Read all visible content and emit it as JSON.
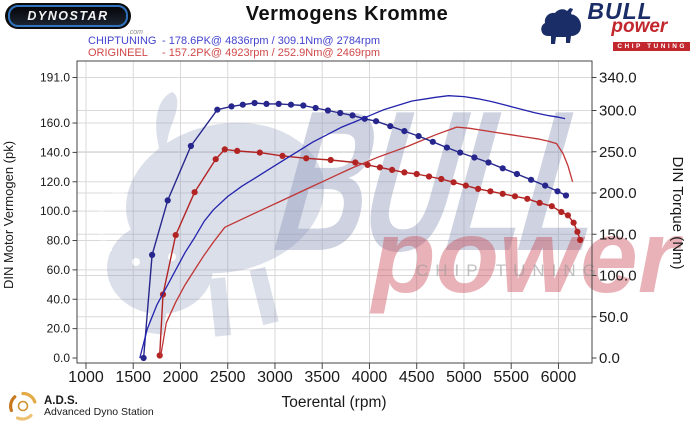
{
  "header": {
    "title": "Vermogens Kromme",
    "dynostar_text": "DYNOSTAR",
    "dynostar_suffix": ".com",
    "bullpower": {
      "line1": "BULL",
      "line2": "power",
      "line3": "CHIP TUNING"
    }
  },
  "legend": [
    {
      "label": "CHIPTUNING",
      "values": "- 178.6PK@ 4836rpm / 309.1Nm@ 2784rpm",
      "color": "#4343cf"
    },
    {
      "label": "ORIGINEEL",
      "values": "- 157.2PK@ 4923rpm / 252.9Nm@ 2469rpm",
      "color": "#d04848"
    }
  ],
  "watermark": {
    "bull_text": "BULL",
    "power_text": "power",
    "chip_text": "CHIP TUNING"
  },
  "footer": {
    "ads_abbr": "A.D.S.",
    "ads_name": "Advanced Dyno Station"
  },
  "colors": {
    "grid": "#d9d9d9",
    "frame": "#454545",
    "tick_text": "#1a1a1a",
    "watermark_blue": "#8b96ba",
    "watermark_red": "#c94a57",
    "watermark_gray": "#9a9a9a",
    "logo_navy": "#1b2d66",
    "logo_red": "#c1272d",
    "dynostar_blue": "#2f72bd",
    "ads_orange": "#cf9030"
  },
  "chart_data": {
    "type": "line",
    "title": "Vermogens Kromme",
    "xlabel": "Toerental (rpm)",
    "ylabel_left": "DIN Motor Vermogen (pk)",
    "ylabel_right": "DIN Torque (Nm)",
    "grid": true,
    "xlim": [
      905,
      6355
    ],
    "x_ticks": [
      1000,
      1500,
      2000,
      2500,
      3000,
      3500,
      4000,
      4500,
      5000,
      5500,
      6000
    ],
    "ylim_left": [
      0,
      191
    ],
    "y_ticks_left": [
      0,
      20,
      40,
      60,
      80,
      100,
      120,
      140,
      160,
      191
    ],
    "ylim_right": [
      0,
      340
    ],
    "y_ticks_right": [
      0,
      50,
      100,
      150,
      200,
      250,
      300,
      340
    ],
    "peaks": {
      "chiptuning": {
        "power_pk": 178.6,
        "power_rpm": 4836,
        "torque_nm": 309.1,
        "torque_rpm": 2784
      },
      "origineel": {
        "power_pk": 157.2,
        "power_rpm": 4923,
        "torque_nm": 252.9,
        "torque_rpm": 2469
      }
    },
    "series": [
      {
        "id": "origineel-torque",
        "name": "ORIGINEEL torque (Nm)",
        "axis": "right",
        "color": "#b22424",
        "markers": true,
        "points": [
          [
            1780,
            3
          ],
          [
            1815,
            77
          ],
          [
            1950,
            149
          ],
          [
            2150,
            201
          ],
          [
            2373,
            241
          ],
          [
            2469,
            252.9
          ],
          [
            2600,
            251
          ],
          [
            2840,
            249
          ],
          [
            3080,
            245
          ],
          [
            3330,
            242
          ],
          [
            3590,
            240
          ],
          [
            3850,
            237
          ],
          [
            3980,
            234
          ],
          [
            4110,
            231
          ],
          [
            4240,
            228
          ],
          [
            4370,
            225
          ],
          [
            4500,
            223
          ],
          [
            4630,
            220
          ],
          [
            4760,
            217
          ],
          [
            4890,
            213
          ],
          [
            5020,
            209
          ],
          [
            5150,
            205
          ],
          [
            5280,
            202
          ],
          [
            5410,
            199
          ],
          [
            5540,
            196
          ],
          [
            5670,
            193
          ],
          [
            5800,
            188
          ],
          [
            5930,
            184
          ],
          [
            6030,
            177
          ],
          [
            6100,
            173
          ],
          [
            6160,
            164
          ],
          [
            6200,
            153
          ],
          [
            6230,
            143
          ]
        ]
      },
      {
        "id": "origineel-power",
        "name": "ORIGINEEL power (PK)",
        "axis": "left",
        "color": "#c13434",
        "markers": false,
        "points": [
          [
            1790,
            1
          ],
          [
            1850,
            24
          ],
          [
            1950,
            38
          ],
          [
            2050,
            50
          ],
          [
            2150,
            60
          ],
          [
            2250,
            70
          ],
          [
            2350,
            79
          ],
          [
            2469,
            89
          ],
          [
            2600,
            93
          ],
          [
            2750,
            97.5
          ],
          [
            2900,
            102
          ],
          [
            3050,
            106.5
          ],
          [
            3200,
            111
          ],
          [
            3350,
            115.5
          ],
          [
            3500,
            120
          ],
          [
            3650,
            124.5
          ],
          [
            3800,
            129
          ],
          [
            3950,
            133
          ],
          [
            4100,
            137
          ],
          [
            4250,
            140.5
          ],
          [
            4400,
            144
          ],
          [
            4550,
            148
          ],
          [
            4700,
            152
          ],
          [
            4850,
            155.5
          ],
          [
            4923,
            157.2
          ],
          [
            5050,
            156.5
          ],
          [
            5200,
            155
          ],
          [
            5350,
            153.5
          ],
          [
            5500,
            152
          ],
          [
            5650,
            150.5
          ],
          [
            5800,
            149
          ],
          [
            5900,
            147.5
          ],
          [
            5980,
            146
          ],
          [
            6050,
            139
          ],
          [
            6100,
            131
          ],
          [
            6150,
            120
          ]
        ]
      },
      {
        "id": "chiptuning-torque",
        "name": "CHIPTUNING torque (Nm)",
        "axis": "right",
        "color": "#26268c",
        "markers": true,
        "points": [
          [
            1610,
            0
          ],
          [
            1700,
            125
          ],
          [
            1865,
            191
          ],
          [
            2110,
            257
          ],
          [
            2390,
            301
          ],
          [
            2540,
            305
          ],
          [
            2660,
            307
          ],
          [
            2784,
            309.1
          ],
          [
            2910,
            308
          ],
          [
            3040,
            308
          ],
          [
            3170,
            307
          ],
          [
            3300,
            306
          ],
          [
            3430,
            303
          ],
          [
            3560,
            300
          ],
          [
            3690,
            297
          ],
          [
            3820,
            294
          ],
          [
            3950,
            290
          ],
          [
            4070,
            287
          ],
          [
            4220,
            281
          ],
          [
            4370,
            275
          ],
          [
            4520,
            269
          ],
          [
            4670,
            262
          ],
          [
            4820,
            255
          ],
          [
            4960,
            249
          ],
          [
            5110,
            243
          ],
          [
            5260,
            237
          ],
          [
            5410,
            230
          ],
          [
            5560,
            223
          ],
          [
            5710,
            216
          ],
          [
            5860,
            209
          ],
          [
            5990,
            202
          ],
          [
            6080,
            197
          ]
        ]
      },
      {
        "id": "chiptuning-power",
        "name": "CHIPTUNING power (PK)",
        "axis": "left",
        "color": "#2323ad",
        "markers": false,
        "points": [
          [
            1570,
            0
          ],
          [
            1650,
            20
          ],
          [
            1750,
            36
          ],
          [
            1850,
            48
          ],
          [
            1950,
            60
          ],
          [
            2050,
            72
          ],
          [
            2150,
            82
          ],
          [
            2250,
            93
          ],
          [
            2350,
            101
          ],
          [
            2500,
            110
          ],
          [
            2650,
            117
          ],
          [
            2800,
            123
          ],
          [
            2950,
            129
          ],
          [
            3100,
            135
          ],
          [
            3250,
            141
          ],
          [
            3400,
            147
          ],
          [
            3550,
            152
          ],
          [
            3700,
            157
          ],
          [
            3850,
            161
          ],
          [
            4000,
            165
          ],
          [
            4150,
            169
          ],
          [
            4300,
            172
          ],
          [
            4450,
            175
          ],
          [
            4600,
            176.5
          ],
          [
            4700,
            177.5
          ],
          [
            4836,
            178.6
          ],
          [
            5000,
            178
          ],
          [
            5150,
            176.5
          ],
          [
            5300,
            174.5
          ],
          [
            5450,
            172
          ],
          [
            5600,
            169.5
          ],
          [
            5750,
            167
          ],
          [
            5900,
            165
          ],
          [
            6000,
            164
          ],
          [
            6070,
            163
          ]
        ]
      }
    ]
  }
}
